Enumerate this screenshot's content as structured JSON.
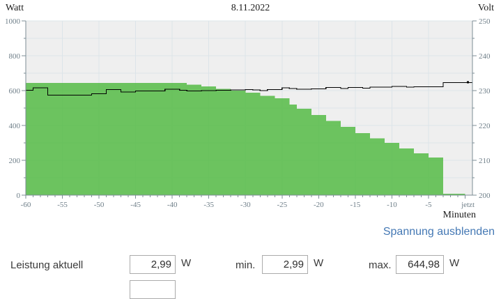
{
  "chart_data": {
    "type": "area",
    "title": "8.11.2022",
    "grid": true,
    "legend": "none",
    "x": [
      -60,
      -59,
      -58,
      -57,
      -56,
      -55,
      -54,
      -53,
      -52,
      -51,
      -50,
      -49,
      -48,
      -47,
      -46,
      -45,
      -44,
      -43,
      -42,
      -41,
      -40,
      -39,
      -38,
      -37,
      -36,
      -35,
      -34,
      -33,
      -32,
      -31,
      -30,
      -29,
      -28,
      -27,
      -26,
      -25,
      -24,
      -23,
      -22,
      -21,
      -20,
      -19,
      -18,
      -17,
      -16,
      -15,
      -14,
      -13,
      -12,
      -11,
      -10,
      -9,
      -8,
      -7,
      -6,
      -5,
      -4,
      -3,
      -2,
      -1,
      0
    ],
    "series": [
      {
        "name": "Leistung",
        "unit": "Watt",
        "axis": "left",
        "style": "stepped-area",
        "color": "#55bb45",
        "fill_opacity": 0.85,
        "values": [
          645,
          645,
          645,
          645,
          645,
          645,
          645,
          645,
          645,
          645,
          645,
          645,
          645,
          645,
          645,
          645,
          645,
          645,
          645,
          645,
          645,
          645,
          635,
          635,
          625,
          625,
          611,
          611,
          601,
          601,
          588,
          588,
          571,
          571,
          556,
          556,
          520,
          496,
          496,
          460,
          460,
          427,
          427,
          393,
          393,
          357,
          357,
          327,
          327,
          300,
          300,
          269,
          269,
          240,
          240,
          216,
          216,
          9,
          9,
          9,
          3
        ]
      },
      {
        "name": "Spannung",
        "unit": "Volt",
        "axis": "right",
        "style": "stepped-line",
        "color": "#000000",
        "values": [
          230.1,
          230.8,
          230.8,
          228.7,
          228.7,
          228.7,
          228.7,
          228.7,
          228.7,
          229.1,
          229.1,
          230.3,
          230.3,
          229.6,
          229.6,
          229.9,
          229.9,
          229.9,
          229.9,
          230.4,
          230.4,
          230.1,
          229.9,
          229.9,
          230.0,
          230.0,
          230.1,
          230.1,
          230.2,
          230.2,
          230.3,
          230.2,
          230.0,
          230.3,
          230.3,
          230.8,
          230.6,
          230.4,
          230.4,
          230.5,
          230.5,
          230.9,
          230.9,
          230.6,
          230.9,
          230.9,
          230.7,
          231.0,
          231.0,
          231.0,
          231.2,
          231.2,
          231.0,
          231.1,
          231.1,
          231.1,
          231.1,
          232.3,
          232.3,
          232.3,
          232.3
        ]
      }
    ],
    "left_axis": {
      "label": "Watt",
      "min": 0,
      "max": 1000,
      "ticks": [
        0,
        200,
        400,
        600,
        800,
        1000
      ],
      "minor_step": 100
    },
    "right_axis": {
      "label": "Volt",
      "min": 200,
      "max": 250,
      "ticks": [
        200,
        210,
        220,
        230,
        240,
        250
      ],
      "minor_step": 5
    },
    "x_axis": {
      "label": "Minuten",
      "tick_minutes": [
        -60,
        -55,
        -50,
        -45,
        -40,
        -35,
        -30,
        -25,
        -20,
        -15,
        -10,
        -5,
        0
      ],
      "tick_labels": [
        "-60",
        "-55",
        "-50",
        "-45",
        "-40",
        "-35",
        "-30",
        "-25",
        "-20",
        "-15",
        "-10",
        "-5",
        "jetzt"
      ],
      "minor_tick_every": 1
    },
    "colors": {
      "plot_background": "#efefef",
      "gridline": "#dce4e9",
      "axis": "#7d8d96",
      "tick_text": "#6e7e88"
    }
  },
  "actions": {
    "hide_voltage_label": "Spannung ausblenden",
    "link_color": "#4478b4"
  },
  "form": {
    "current": {
      "label": "Leistung aktuell",
      "value": "2,99",
      "unit": "W"
    },
    "min": {
      "label": "min.",
      "value": "2,99",
      "unit": "W"
    },
    "max": {
      "label": "max.",
      "value": "644,98",
      "unit": "W"
    },
    "secondary_value": ""
  }
}
